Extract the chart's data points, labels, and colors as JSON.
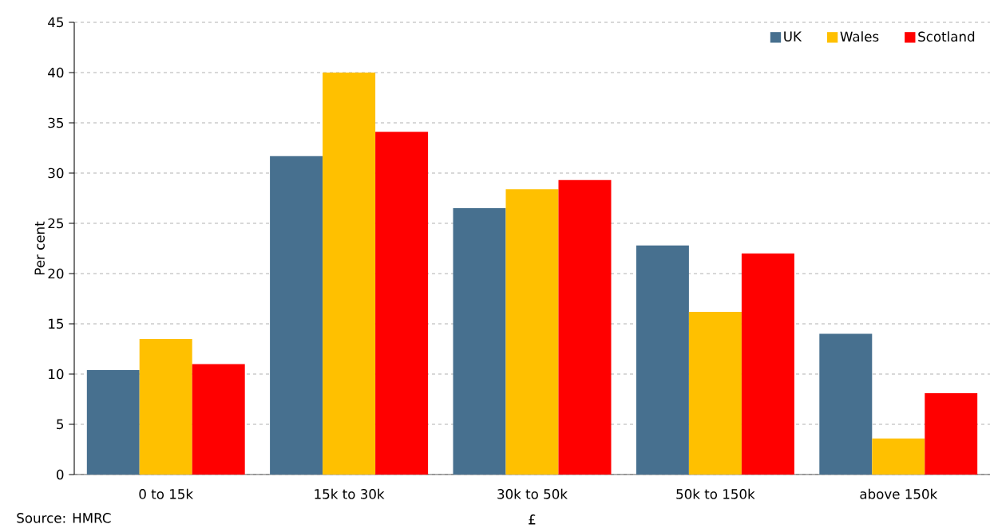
{
  "chart_data": {
    "type": "bar",
    "ylabel": "Per cent",
    "xlabel": "£",
    "annotations": [
      "Source: HMRC"
    ],
    "categories": [
      "0 to 15k",
      "15k to 30k",
      "30k to 50k",
      "50k to 150k",
      "above 150k"
    ],
    "series": [
      {
        "name": "UK",
        "color": "#47708f",
        "values": [
          10.4,
          31.7,
          26.5,
          22.8,
          14.0
        ]
      },
      {
        "name": "Wales",
        "color": "#ffc000",
        "values": [
          13.5,
          40.0,
          28.4,
          16.2,
          3.6
        ]
      },
      {
        "name": "Scotland",
        "color": "#ff0000",
        "values": [
          11.0,
          34.1,
          29.3,
          22.0,
          8.1
        ]
      }
    ],
    "ylim": [
      0,
      45
    ],
    "yticks": [
      0,
      5,
      10,
      15,
      20,
      25,
      30,
      35,
      40,
      45
    ],
    "grid": "y",
    "legend": "top right"
  }
}
